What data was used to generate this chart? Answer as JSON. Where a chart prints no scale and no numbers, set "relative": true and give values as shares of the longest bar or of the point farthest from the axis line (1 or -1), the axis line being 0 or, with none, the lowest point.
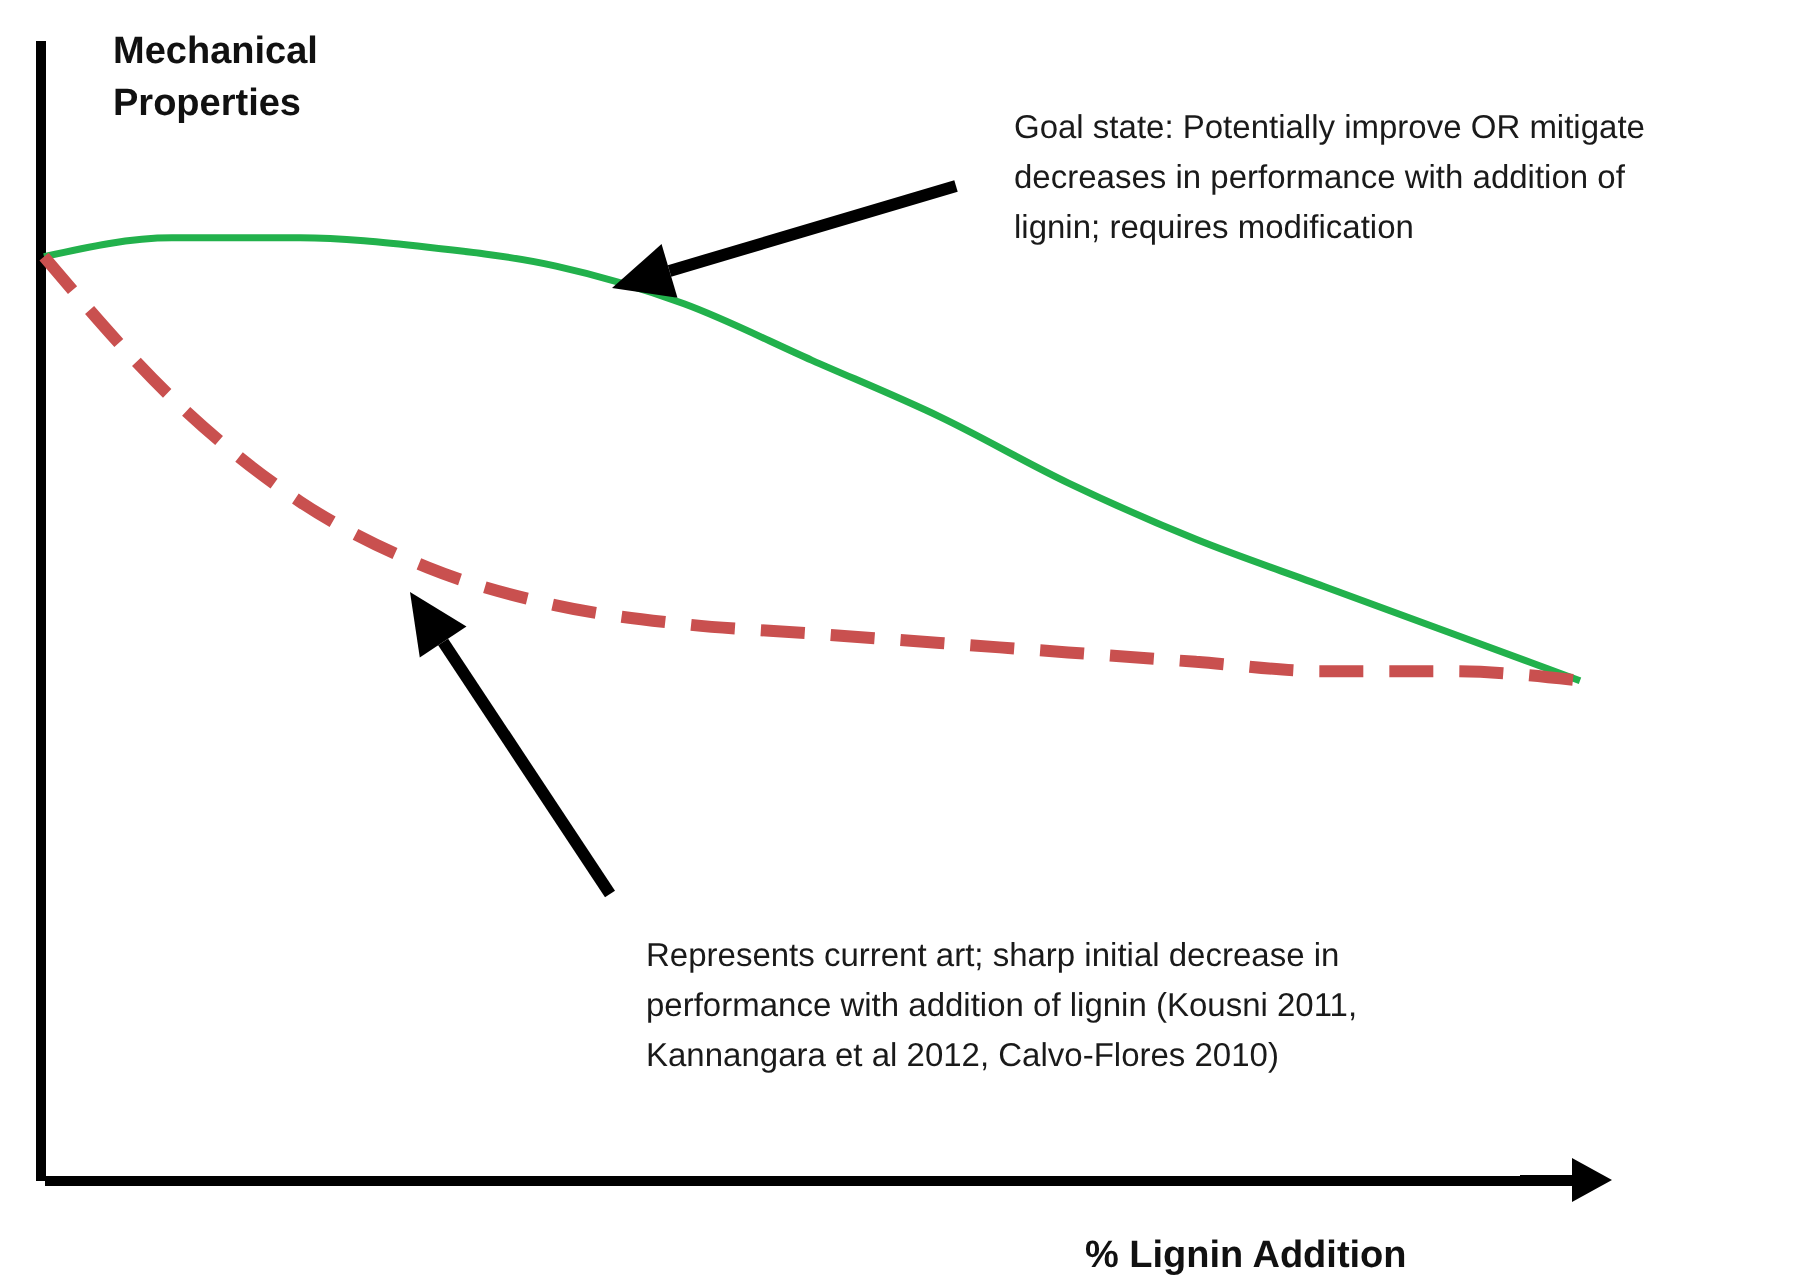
{
  "chart_data": {
    "type": "line",
    "relative": true,
    "ylabel": "Mechanical Properties",
    "xlabel": "% Lignin Addition",
    "categories": [
      null,
      null,
      null,
      null,
      null,
      null,
      null,
      null,
      null,
      null,
      null,
      null,
      null
    ],
    "series": [
      {
        "color": "#22b14c",
        "line_style": "solid",
        "values": [
          0.98,
          1.0,
          1.0,
          0.99,
          0.97,
          0.93,
          0.87,
          0.81,
          0.74,
          0.68,
          0.63,
          0.58,
          0.53
        ]
      },
      {
        "color": "#c9504f",
        "line_style": "dashed",
        "values": [
          0.98,
          0.83,
          0.72,
          0.65,
          0.61,
          0.59,
          0.58,
          0.57,
          0.56,
          0.55,
          0.54,
          0.54,
          0.53
        ]
      }
    ],
    "annotations": [
      "Goal state: Potentially improve OR mitigate decreases in performance with addition of lignin; requires modification",
      "Represents current art; sharp initial decrease in performance with addition of lignin (Kousni 2011, Kannangara et al 2012, Calvo-Flores 2010)"
    ],
    "grid": false
  }
}
